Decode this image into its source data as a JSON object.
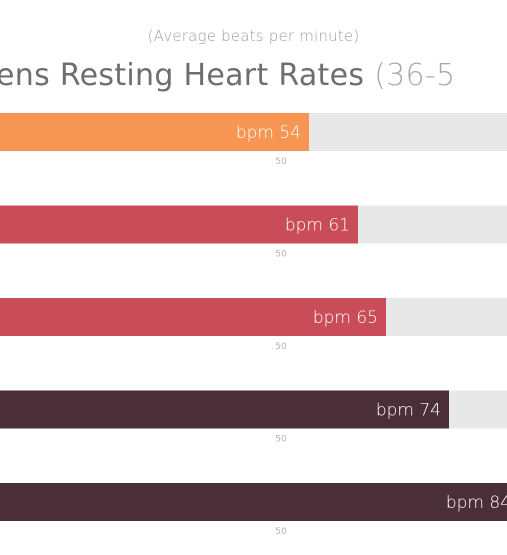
{
  "subtitle": "(Average beats per minute)",
  "title_main": "ens Resting Heart Rates",
  "title_range": "(36-5",
  "chart_data": {
    "type": "bar",
    "orientation": "horizontal",
    "subtitle": "(Average beats per minute)",
    "title": "ens Resting Heart Rates (36-5",
    "value_prefix": "bpm",
    "values": [
      54,
      61,
      65,
      74,
      84
    ],
    "colors": [
      "#f79652",
      "#c94d58",
      "#c94d58",
      "#4a2f38",
      "#4a2f38"
    ],
    "track_color": "#e8e8e8",
    "tick_value": 50,
    "tick_label": "50",
    "grid": false,
    "legend": "none"
  }
}
